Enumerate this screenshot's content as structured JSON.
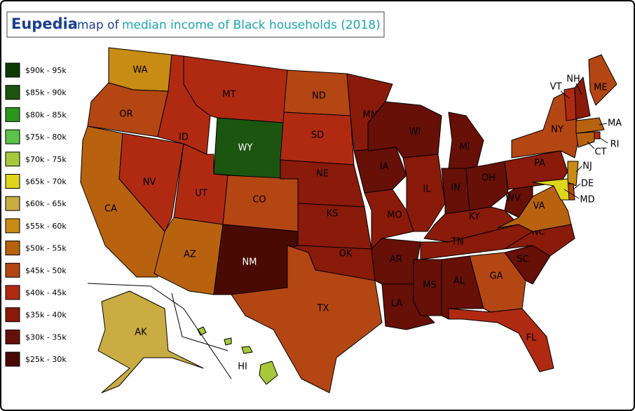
{
  "header": {
    "brand": "Eupedia",
    "title_prefix": "map of",
    "title": "median income of Black households (2018)"
  },
  "legend": [
    {
      "label": "$90k - 95k",
      "color": "#0f3a06"
    },
    {
      "label": "$85k - 90k",
      "color": "#1c5510"
    },
    {
      "label": "$80k - 85k",
      "color": "#2c961c"
    },
    {
      "label": "$75k - 80k",
      "color": "#5cc24a"
    },
    {
      "label": "$70k - 75k",
      "color": "#a6c83a"
    },
    {
      "label": "$65k - 70k",
      "color": "#ddd61c"
    },
    {
      "label": "$60k - 65k",
      "color": "#c9ac42"
    },
    {
      "label": "$55k - 60k",
      "color": "#c88b14"
    },
    {
      "label": "$50k - 55k",
      "color": "#b8620f"
    },
    {
      "label": "$45k - 50k",
      "color": "#b44614"
    },
    {
      "label": "$40k - 45k",
      "color": "#b02a12"
    },
    {
      "label": "$35k - 40k",
      "color": "#8a1a0a"
    },
    {
      "label": "$30k - 35k",
      "color": "#661008"
    },
    {
      "label": "$25k - 30k",
      "color": "#4a0a04"
    }
  ],
  "states": [
    {
      "label": "WA",
      "color": "#c88b14"
    },
    {
      "label": "OR",
      "color": "#b44614"
    },
    {
      "label": "CA",
      "color": "#b8620f"
    },
    {
      "label": "NV",
      "color": "#b02a12"
    },
    {
      "label": "ID",
      "color": "#b02a12"
    },
    {
      "label": "MT",
      "color": "#b02a12"
    },
    {
      "label": "WY",
      "color": "#1c5510"
    },
    {
      "label": "UT",
      "color": "#b02a12"
    },
    {
      "label": "CO",
      "color": "#b44614"
    },
    {
      "label": "AZ",
      "color": "#b8620f"
    },
    {
      "label": "NM",
      "color": "#4a0a04"
    },
    {
      "label": "ND",
      "color": "#b44614"
    },
    {
      "label": "SD",
      "color": "#b02a12"
    },
    {
      "label": "NE",
      "color": "#8a1a0a"
    },
    {
      "label": "KS",
      "color": "#8a1a0a"
    },
    {
      "label": "OK",
      "color": "#8a1a0a"
    },
    {
      "label": "TX",
      "color": "#b44614"
    },
    {
      "label": "MN",
      "color": "#8a1a0a"
    },
    {
      "label": "IA",
      "color": "#661008"
    },
    {
      "label": "MO",
      "color": "#8a1a0a"
    },
    {
      "label": "AR",
      "color": "#661008"
    },
    {
      "label": "LA",
      "color": "#661008"
    },
    {
      "label": "WI",
      "color": "#661008"
    },
    {
      "label": "IL",
      "color": "#8a1a0a"
    },
    {
      "label": "MI",
      "color": "#661008"
    },
    {
      "label": "IN",
      "color": "#661008"
    },
    {
      "label": "OH",
      "color": "#661008"
    },
    {
      "label": "KY",
      "color": "#8a1a0a"
    },
    {
      "label": "TN",
      "color": "#8a1a0a"
    },
    {
      "label": "MS",
      "color": "#661008"
    },
    {
      "label": "AL",
      "color": "#661008"
    },
    {
      "label": "GA",
      "color": "#b44614"
    },
    {
      "label": "FL",
      "color": "#b02a12"
    },
    {
      "label": "SC",
      "color": "#661008"
    },
    {
      "label": "NC",
      "color": "#8a1a0a"
    },
    {
      "label": "VA",
      "color": "#b8620f"
    },
    {
      "label": "WV",
      "color": "#661008"
    },
    {
      "label": "PA",
      "color": "#8a1a0a"
    },
    {
      "label": "NY",
      "color": "#b44614"
    },
    {
      "label": "NJ",
      "color": "#c88b14"
    },
    {
      "label": "DE",
      "color": "#b44614"
    },
    {
      "label": "MD",
      "color": "#ddd61c"
    },
    {
      "label": "VT",
      "color": "#b02a12"
    },
    {
      "label": "NH",
      "color": "#8a1a0a"
    },
    {
      "label": "ME",
      "color": "#b44614"
    },
    {
      "label": "MA",
      "color": "#b8620f"
    },
    {
      "label": "RI",
      "color": "#b02a12"
    },
    {
      "label": "CT",
      "color": "#b8620f"
    },
    {
      "label": "AK",
      "color": "#c9ac42"
    },
    {
      "label": "HI",
      "color": "#a6c83a"
    }
  ]
}
